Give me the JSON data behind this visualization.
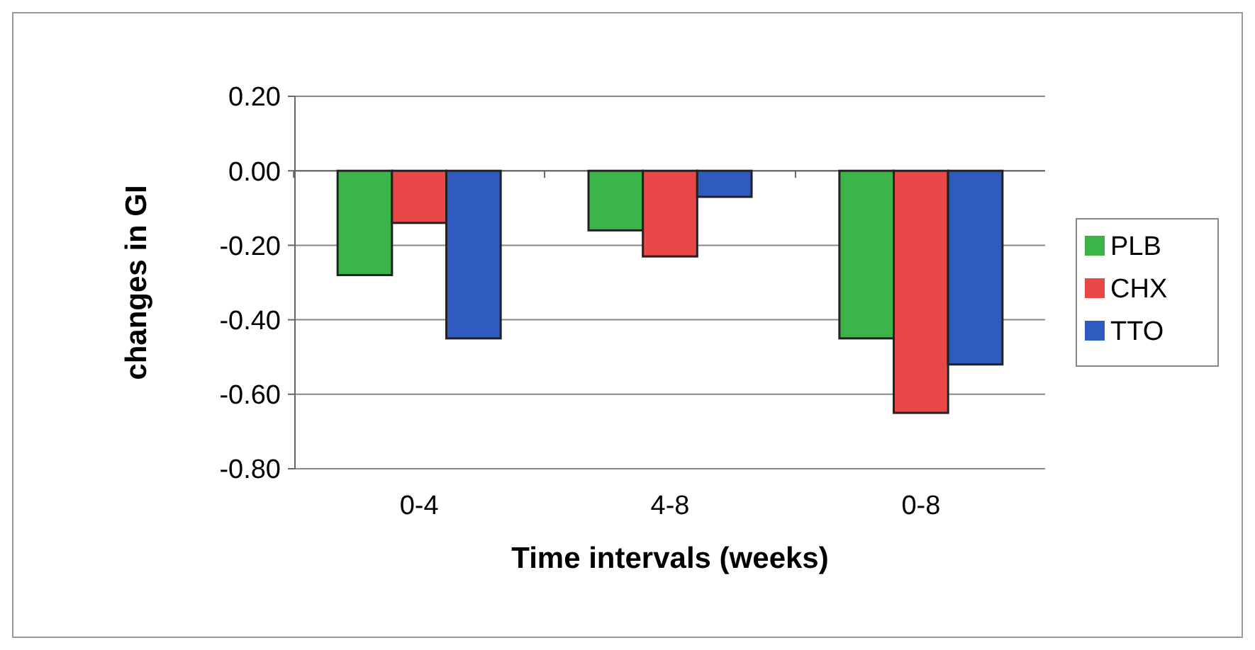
{
  "chart_data": {
    "type": "bar",
    "xlabel": "Time intervals (weeks)",
    "ylabel": "changes in GI",
    "categories": [
      "0-4",
      "4-8",
      "0-8"
    ],
    "series": [
      {
        "name": "PLB",
        "color": "#3cb44a",
        "values": [
          -0.28,
          -0.16,
          -0.45
        ]
      },
      {
        "name": "CHX",
        "color": "#e84848",
        "values": [
          -0.14,
          -0.23,
          -0.65
        ]
      },
      {
        "name": "TTO",
        "color": "#2f5bc0",
        "values": [
          -0.45,
          -0.07,
          -0.52
        ]
      }
    ],
    "ylim": [
      -0.8,
      0.2
    ],
    "yticks": [
      {
        "value": -0.8,
        "label": "-0.80"
      },
      {
        "value": -0.6,
        "label": "-0.60"
      },
      {
        "value": -0.4,
        "label": "-0.40"
      },
      {
        "value": -0.2,
        "label": "-0.20"
      },
      {
        "value": 0,
        "label": "0.00"
      },
      {
        "value": 0.2,
        "label": "0.20"
      }
    ],
    "grid": "y",
    "legend": "right"
  }
}
